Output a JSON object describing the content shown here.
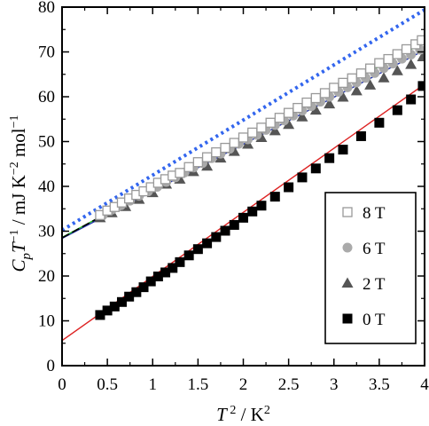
{
  "chart_data": {
    "type": "scatter",
    "title": "",
    "xlabel": {
      "base": "T",
      "sup": "2",
      "unit": " / K",
      "unit_sup": "2"
    },
    "ylabel": {
      "c": "C",
      "p": "p",
      "T": "T",
      "exp": "−1",
      "unit_a": " / mJ K",
      "unit_a_sup": "−2",
      "unit_b": " mol",
      "unit_b_sup": "−1"
    },
    "xlim": [
      0,
      4
    ],
    "ylim": [
      0,
      80
    ],
    "x_ticks": [
      "0",
      "0.5",
      "1",
      "1.5",
      "2",
      "2.5",
      "3",
      "3.5",
      "4"
    ],
    "y_ticks": [
      "0",
      "10",
      "20",
      "30",
      "40",
      "50",
      "60",
      "70",
      "80"
    ],
    "grid": false,
    "legend_position": "bottom-right",
    "series": [
      {
        "name": "8 T",
        "marker": "open-square",
        "color": "#999999",
        "fit": {
          "intercept": 28.5,
          "slope": 11.1,
          "color": "#000000",
          "dash": true
        },
        "x": [
          0.42,
          0.5,
          0.58,
          0.66,
          0.74,
          0.82,
          0.9,
          0.98,
          1.06,
          1.14,
          1.22,
          1.3,
          1.4,
          1.5,
          1.6,
          1.7,
          1.8,
          1.9,
          2.0,
          2.1,
          2.2,
          2.3,
          2.4,
          2.5,
          2.6,
          2.7,
          2.8,
          2.9,
          3.0,
          3.1,
          3.2,
          3.3,
          3.4,
          3.5,
          3.6,
          3.7,
          3.8,
          3.9,
          3.97
        ],
        "y": [
          33.6,
          34.6,
          35.4,
          36.4,
          37.3,
          38.1,
          38.9,
          39.8,
          40.8,
          41.6,
          42.4,
          43.0,
          44.3,
          45.4,
          46.5,
          47.6,
          48.6,
          49.7,
          50.9,
          52.0,
          53.1,
          54.2,
          55.3,
          56.4,
          57.5,
          58.7,
          59.7,
          60.8,
          62.0,
          63.1,
          64.1,
          65.2,
          66.3,
          67.5,
          68.4,
          69.5,
          70.6,
          71.7,
          72.6
        ]
      },
      {
        "name": "6 T",
        "marker": "filled-circle",
        "color": "#aaaaaa",
        "fit": {
          "intercept": 28.6,
          "slope": 10.9,
          "color": "#22bb22",
          "dash": false
        },
        "x": [
          0.45,
          0.55,
          0.65,
          0.75,
          0.85,
          0.95,
          1.05,
          1.15,
          1.25,
          1.35,
          1.45,
          1.55,
          1.65,
          1.75,
          1.85,
          1.95,
          2.05,
          2.15,
          2.25,
          2.35,
          2.45,
          2.55,
          2.65,
          2.75,
          2.85,
          2.95,
          3.05,
          3.15,
          3.25,
          3.35,
          3.45,
          3.55,
          3.65,
          3.75,
          3.85,
          3.95
        ],
        "y": [
          33.6,
          34.8,
          35.8,
          36.8,
          37.9,
          38.9,
          39.9,
          41.0,
          42.0,
          43.1,
          44.2,
          45.2,
          46.3,
          47.3,
          48.4,
          49.5,
          50.5,
          51.5,
          52.6,
          53.7,
          54.7,
          55.8,
          56.9,
          57.9,
          58.9,
          60.0,
          61.1,
          62.1,
          63.2,
          64.2,
          65.3,
          66.4,
          67.4,
          68.5,
          69.4,
          70.5
        ]
      },
      {
        "name": "2 T",
        "marker": "filled-triangle",
        "color": "#555555",
        "fit": {
          "intercept": 28.4,
          "slope": 10.5,
          "color": "#2233aa",
          "dash": false
        },
        "x": [
          0.42,
          0.55,
          0.7,
          0.85,
          1.0,
          1.15,
          1.3,
          1.45,
          1.6,
          1.75,
          1.9,
          2.05,
          2.2,
          2.35,
          2.5,
          2.65,
          2.8,
          2.95,
          3.1,
          3.25,
          3.4,
          3.55,
          3.7,
          3.85,
          3.98
        ],
        "y": [
          33.0,
          34.1,
          35.5,
          37.1,
          38.6,
          40.5,
          41.6,
          43.3,
          44.5,
          46.3,
          47.8,
          49.4,
          50.9,
          52.4,
          53.8,
          55.5,
          57.0,
          58.4,
          59.9,
          61.3,
          62.6,
          64.2,
          65.8,
          67.2,
          68.9
        ]
      },
      {
        "name": "0 T",
        "marker": "filled-square",
        "color": "#000000",
        "fit": {
          "intercept": 5.6,
          "slope": 14.3,
          "color": "#dd2222",
          "dash": false
        },
        "x": [
          0.42,
          0.5,
          0.58,
          0.66,
          0.74,
          0.82,
          0.9,
          0.98,
          1.06,
          1.14,
          1.22,
          1.3,
          1.4,
          1.5,
          1.6,
          1.7,
          1.8,
          1.9,
          2.0,
          2.1,
          2.2,
          2.35,
          2.5,
          2.65,
          2.8,
          2.95,
          3.1,
          3.3,
          3.5,
          3.7,
          3.85,
          3.98
        ],
        "y": [
          11.3,
          12.3,
          13.2,
          14.2,
          15.4,
          16.4,
          17.5,
          18.8,
          19.9,
          20.8,
          21.8,
          23.1,
          24.6,
          26.0,
          27.3,
          28.7,
          30.1,
          31.4,
          33.0,
          34.4,
          35.7,
          37.7,
          39.8,
          42.0,
          44.0,
          46.3,
          48.2,
          51.2,
          54.2,
          57.0,
          59.4,
          62.4
        ]
      }
    ],
    "reference_line": {
      "intercept": 30.2,
      "slope": 12.3,
      "color": "#3366ee",
      "style": "dotted"
    }
  }
}
